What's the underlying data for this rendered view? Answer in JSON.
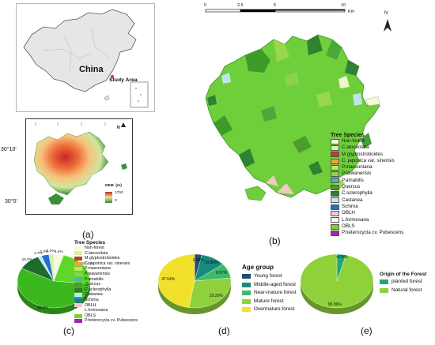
{
  "panels": {
    "a": "(a)",
    "b": "(b)",
    "c": "(c)",
    "d": "(d)",
    "e": "(e)"
  },
  "china_map": {
    "country_label": "China",
    "study_area_label": "Study Area"
  },
  "dem_map": {
    "lat_top": "30°10'",
    "lat_bottom": "30°5'",
    "legend_title": "DEM  (m)",
    "legend_max": "1750",
    "legend_min": "0",
    "north": "N"
  },
  "main_map": {
    "north": "N",
    "scale_ticks": [
      "0",
      "2.5",
      "5",
      "10"
    ],
    "scale_unit": "Km",
    "legend_title": "Tree Species",
    "legend": [
      {
        "label": "Non-forest",
        "color": "#f4f9d6"
      },
      {
        "label": "C.lanceolata",
        "color": "#d9f0a3"
      },
      {
        "label": "M.glyptostroboides",
        "color": "#b5451b"
      },
      {
        "label": "C. japonica var. sinensis",
        "color": "#f2a33a"
      },
      {
        "label": "P.massoniana",
        "color": "#c6e35a"
      },
      {
        "label": "P.taiwanensis",
        "color": "#8fd14f"
      },
      {
        "label": "P.amabilis",
        "color": "#3fbfa0"
      },
      {
        "label": "Quercus",
        "color": "#4e9a2e"
      },
      {
        "label": "C.sclerophylla",
        "color": "#2e7d32"
      },
      {
        "label": "Castanea",
        "color": "#bfe8f5"
      },
      {
        "label": "Schima",
        "color": "#1f6fd1"
      },
      {
        "label": "OBLH",
        "color": "#f7c9c9"
      },
      {
        "label": "L.formosana",
        "color": "#ffffff"
      },
      {
        "label": "OBLS",
        "color": "#7ed321"
      },
      {
        "label": "P.heterocycla cv. Pubescens",
        "color": "#9c27b0"
      }
    ]
  },
  "chart_data": [
    {
      "type": "pie",
      "panel": "c",
      "legend_title": "Tree Species",
      "legend": [
        "Non-forest",
        "C.lanceolata",
        "M.glyptostroboides",
        "C. japonica var. sinensis",
        "P.massoniana",
        "P.taiwanensis",
        "P.amabilis",
        "Quercus",
        "C.sclerophylla",
        "Castanea",
        "Schima",
        "OBLH",
        "L.formosana",
        "OBLS",
        "P.heterocycla cv. Pubescens"
      ],
      "colors": [
        "#f4f9d6",
        "#d9f0a3",
        "#b5451b",
        "#f2a33a",
        "#c6e35a",
        "#8fd14f",
        "#3fbfa0",
        "#4e9a2e",
        "#2e7d32",
        "#bfe8f5",
        "#1f6fd1",
        "#f7c9c9",
        "#ffffff",
        "#7ed321",
        "#9c27b0"
      ],
      "slices": [
        {
          "name": "Non-forest",
          "value": 4.4,
          "label": "4.4%",
          "color": "#f4f9d6"
        },
        {
          "name": "P.massoniana",
          "value": 22.4,
          "label": "22.4%",
          "color": "#5fd62a"
        },
        {
          "name": "OBLS",
          "value": 56.2,
          "label": "56.2%",
          "color": "#3bb81e"
        },
        {
          "name": "C.sclerophylla",
          "value": 10.0,
          "label": "10.0%",
          "color": "#1e6b2a"
        },
        {
          "name": "Castanea",
          "value": 1.7,
          "label": "1.7%",
          "color": "#bfe8f5"
        },
        {
          "name": "Schima",
          "value": 3.3,
          "label": "3.3%",
          "color": "#1f6fd1"
        },
        {
          "name": "C.lanceolata",
          "value": 2.2,
          "label": "2.2%",
          "color": "#d9f0a3"
        }
      ]
    },
    {
      "type": "pie",
      "panel": "d",
      "legend_title": "Age group",
      "slices": [
        {
          "name": "Young forest",
          "value": 3.24,
          "label": "3.24%",
          "color": "#1d4f70"
        },
        {
          "name": "Middle-aged forest",
          "value": 10.96,
          "label": "10.96%",
          "color": "#178a7e"
        },
        {
          "name": "Near-mature forest",
          "value": 8.97,
          "label": "8.97%",
          "color": "#3dbb6a"
        },
        {
          "name": "Mature forest",
          "value": 29.29,
          "label": "29.29%",
          "color": "#8ed13a"
        },
        {
          "name": "Overmature forest",
          "value": 47.54,
          "label": "47.54%",
          "color": "#f2e12a"
        }
      ]
    },
    {
      "type": "pie",
      "panel": "e",
      "legend_title": "Origin of the Forest",
      "slices": [
        {
          "name": "planted forest",
          "value": 4.04,
          "label": "4.04%",
          "color": "#1fa77a"
        },
        {
          "name": "Natural forest",
          "value": 95.96,
          "label": "95.96%",
          "color": "#8ed13a"
        }
      ]
    }
  ]
}
